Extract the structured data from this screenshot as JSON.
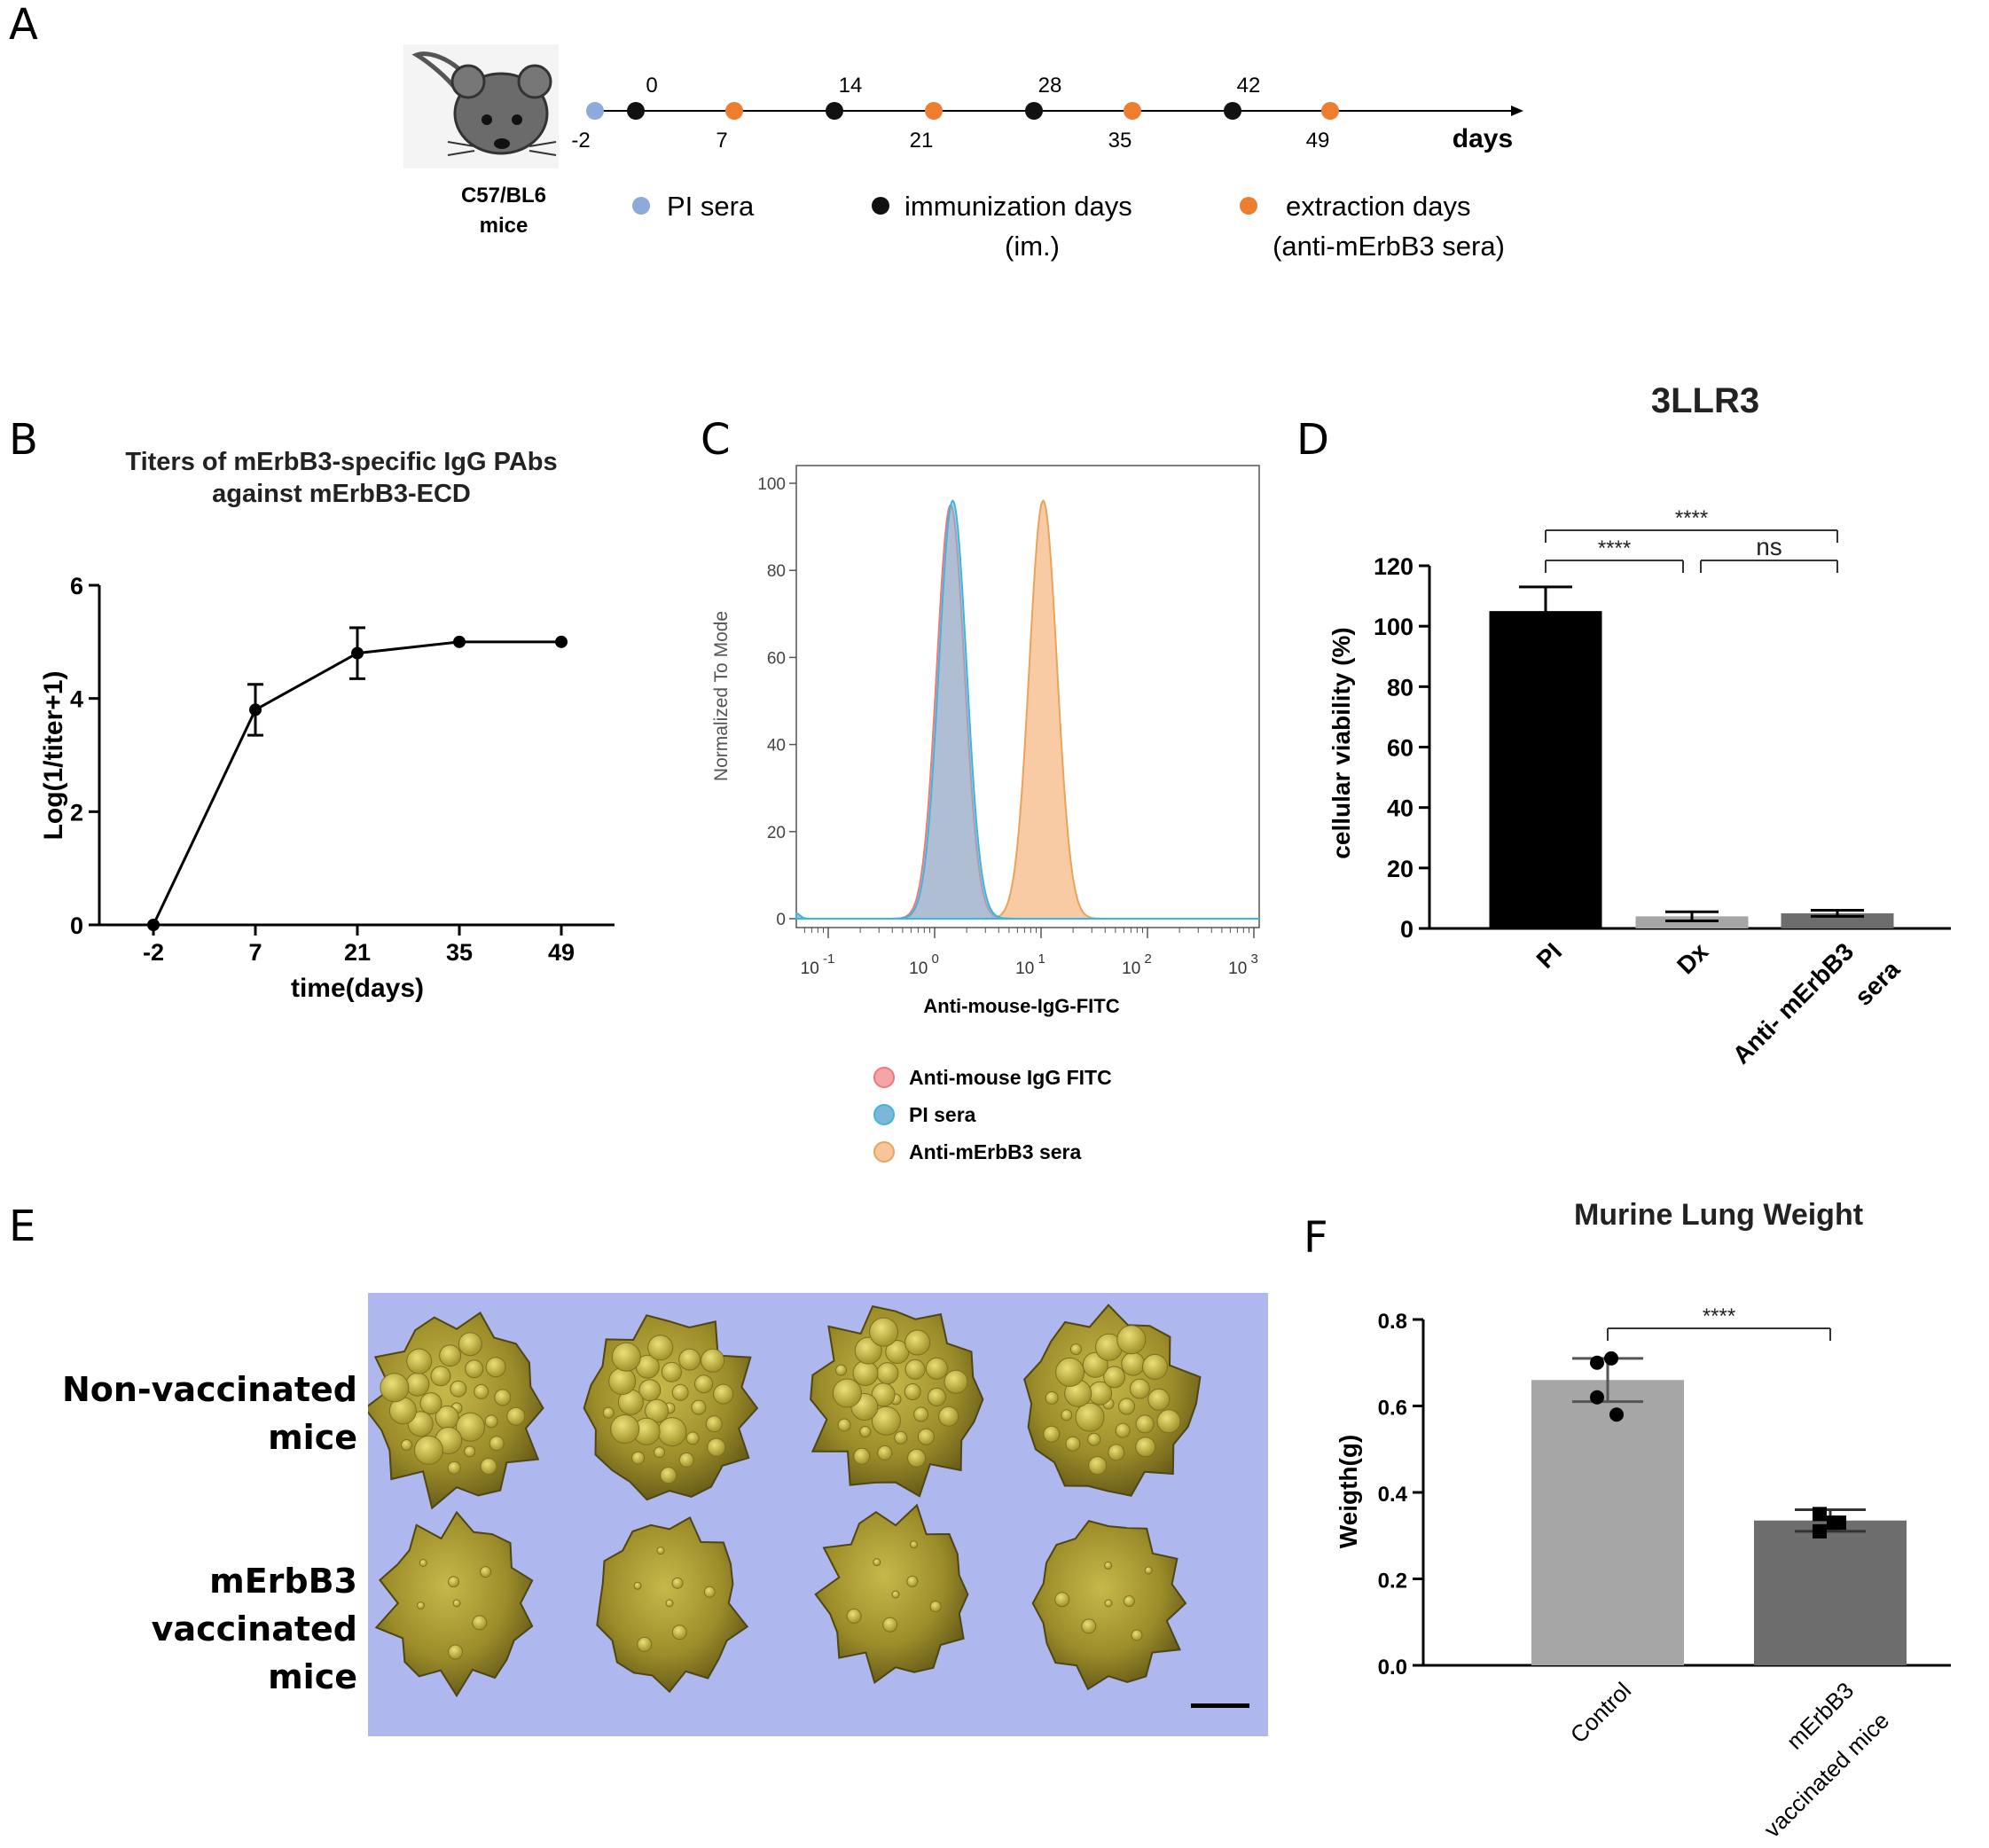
{
  "panel_labels": {
    "a": "A",
    "b": "B",
    "c": "C",
    "d": "D",
    "e": "E",
    "f": "F"
  },
  "colors": {
    "pi": "#8eaadb",
    "immunization": "#111111",
    "extraction": "#ed7d31",
    "bar_black": "#000000",
    "bar_light": "#a6a6a6",
    "bar_dark": "#6d6d6d",
    "hist_red": "#f4a6a6",
    "hist_blue": "#7fb6d8",
    "hist_orange": "#f8c59a"
  },
  "timeline": {
    "mouse_label_1": "C57/BL6",
    "mouse_label_2": "mice",
    "top_ticks": [
      "0",
      "14",
      "28",
      "42"
    ],
    "bottom_ticks": [
      "-2",
      "7",
      "21",
      "35",
      "49"
    ],
    "axis_label": "days",
    "legend": {
      "pi": "PI sera",
      "immunization_1": "immunization days",
      "immunization_2": "(im.)",
      "extraction_1": "extraction days",
      "extraction_2": "(anti-mErbB3 sera)"
    }
  },
  "chart_data": [
    {
      "id": "B",
      "type": "line",
      "title": "Titers of mErbB3-specific IgG PAbs",
      "title_line2": "against mErbB3-ECD",
      "xlabel": "time(days)",
      "ylabel": "Log(1/titer+1)",
      "categories": [
        "-2",
        "7",
        "21",
        "35",
        "49"
      ],
      "values": [
        0,
        3.8,
        4.8,
        5.0,
        5.0
      ],
      "errors": [
        0,
        0.45,
        0.45,
        0,
        0
      ],
      "ylim": [
        0,
        6
      ],
      "yticks": [
        "0",
        "2",
        "4",
        "6"
      ]
    },
    {
      "id": "C",
      "type": "area",
      "title": "",
      "xlabel": "Anti-mouse-IgG-FITC",
      "ylabel": "Normalized To Mode",
      "xscale": "log",
      "xticks": [
        "10^-1",
        "10^0",
        "10^1",
        "10^2",
        "10^3"
      ],
      "yticks": [
        "0",
        "20",
        "40",
        "60",
        "80",
        "100"
      ],
      "ylim": [
        0,
        100
      ],
      "series": [
        {
          "name": "Anti-mouse IgG FITC",
          "peak_log10": 0.15,
          "width": 0.13,
          "height": 95
        },
        {
          "name": "PI sera",
          "peak_log10": 0.17,
          "width": 0.13,
          "height": 96
        },
        {
          "name": "Anti-mErbB3 sera",
          "peak_log10": 1.02,
          "width": 0.13,
          "height": 96
        }
      ]
    },
    {
      "id": "D",
      "type": "bar",
      "title": "3LLR3",
      "xlabel": "",
      "ylabel": "cellular viability (%)",
      "categories": [
        "PI",
        "Dx",
        "Anti- mErbB3 sera"
      ],
      "category_lines": [
        [
          "PI"
        ],
        [
          "Dx"
        ],
        [
          "Anti- mErbB3",
          "sera"
        ]
      ],
      "values": [
        105,
        4,
        5
      ],
      "errors": [
        8,
        1.5,
        1
      ],
      "ylim": [
        0,
        120
      ],
      "yticks": [
        "0",
        "20",
        "40",
        "60",
        "80",
        "100",
        "120"
      ],
      "significance": [
        {
          "from": "PI",
          "to": "Dx",
          "label": "****"
        },
        {
          "from": "Dx",
          "to": "Anti- mErbB3 sera",
          "label": "ns"
        },
        {
          "from": "PI",
          "to": "Anti- mErbB3 sera",
          "label": "****"
        }
      ]
    },
    {
      "id": "F",
      "type": "bar",
      "title": "Murine Lung Weight",
      "xlabel": "",
      "ylabel": "Weigth(g)",
      "categories": [
        "Control",
        "mErbB3 vaccinated mice"
      ],
      "category_lines": [
        [
          "Control"
        ],
        [
          "mErbB3",
          "vaccinated mice"
        ]
      ],
      "values": [
        0.66,
        0.335
      ],
      "errors": [
        0.05,
        0.025
      ],
      "points": [
        [
          0.7,
          0.71,
          0.62,
          0.58
        ],
        [
          0.35,
          0.33,
          0.31,
          0.33
        ]
      ],
      "ylim": [
        0,
        0.8
      ],
      "yticks": [
        "0.0",
        "0.2",
        "0.4",
        "0.6",
        "0.8"
      ],
      "significance": [
        {
          "from": "Control",
          "to": "mErbB3 vaccinated mice",
          "label": "****"
        }
      ]
    }
  ],
  "photo": {
    "row1_line1": "Non-vaccinated",
    "row1_line2": "mice",
    "row2_line1": "mErbB3 vaccinated",
    "row2_line2": "mice"
  }
}
